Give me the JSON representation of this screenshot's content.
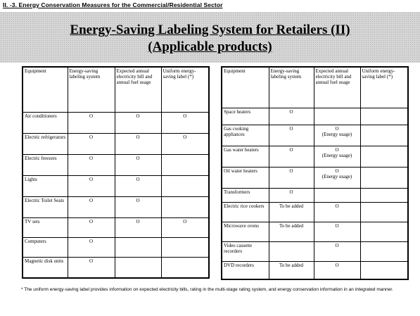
{
  "section_header": "II. -3. Energy Conservation Measures for the Commercial/Residential Sector",
  "title_line1": "Energy-Saving Labeling System for Retailers (II)",
  "title_line2": "(Applicable products)",
  "left_table": {
    "headers": [
      "Equipment",
      "Energy-saving labeling system",
      "Expected annual electricity bill and annual fuel usage",
      "Uniform energy-saving label (*)"
    ],
    "rows": [
      [
        "Air conditioners",
        "O",
        "O",
        "O"
      ],
      [
        "Electric refrigerators",
        "O",
        "O",
        "O"
      ],
      [
        "Electric freezers",
        "O",
        "O",
        ""
      ],
      [
        "Lights",
        "O",
        "O",
        ""
      ],
      [
        "Electric Toilet Seats",
        "O",
        "O",
        ""
      ],
      [
        "TV sets",
        "O",
        "O",
        "O"
      ],
      [
        "Computers",
        "O",
        "",
        ""
      ],
      [
        "Magnetic disk units",
        "O",
        "",
        ""
      ]
    ]
  },
  "right_table": {
    "headers": [
      "Equipment",
      "Energy-saving labeling system",
      "Expected annual electricity bill and annual fuel usage",
      "Uniform energy-saving label (*)"
    ],
    "rows": [
      [
        "Space heaters",
        "O",
        "",
        ""
      ],
      [
        "Gas cooking appliances",
        "O",
        "O\n(Energy usage)",
        ""
      ],
      [
        "Gas water heaters",
        "O",
        "O\n(Energy usage)",
        ""
      ],
      [
        "Oil water heaters",
        "O",
        "O\n(Energy usage)",
        ""
      ],
      [
        "Transformers",
        "O",
        "",
        ""
      ],
      [
        "Electric rice cookers",
        "To be added",
        "O",
        ""
      ],
      [
        "Microwave ovens",
        "To be added",
        "O",
        ""
      ],
      [
        "Video cassette recorders",
        "",
        "O",
        ""
      ],
      [
        "DVD recorders",
        "To be added",
        "O",
        ""
      ]
    ]
  },
  "footnote": "* The uniform energy-saving label provides information on expected electricity bills, rating in the multi-stage rating system, and energy conservation information in an integrated manner."
}
